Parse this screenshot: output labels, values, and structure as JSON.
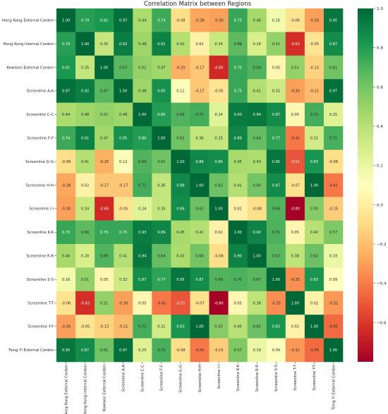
{
  "chart_data": {
    "type": "heatmap",
    "title": "Correlation Matrix between Regions",
    "labels": [
      "Hong Kong External Cordon",
      "Hong Kong Internal Cordon",
      "Kowloon External Cordon",
      "Screenline A-A",
      "Screenline C-C",
      "Screenline F-F",
      "Screenline G-G",
      "Screenline H-H",
      "Screenline I-I",
      "Screenline K-K",
      "Screenline R-R",
      "Screenline S-S",
      "Screenline T-T",
      "Screenline Y-Y",
      "Tsing Yi External Cordon"
    ],
    "values": [
      [
        1.0,
        0.79,
        0.82,
        0.97,
        0.44,
        0.74,
        -0.08,
        -0.28,
        -0.3,
        0.75,
        0.46,
        0.16,
        -0.06,
        -0.3,
        0.95
      ],
      [
        0.79,
        1.0,
        0.35,
        0.92,
        0.48,
        0.91,
        0.41,
        0.02,
        0.34,
        0.66,
        0.28,
        0.51,
        -0.63,
        -0.05,
        0.87
      ],
      [
        0.82,
        0.35,
        1.0,
        0.67,
        0.51,
        0.47,
        -0.25,
        -0.17,
        -0.65,
        0.75,
        0.69,
        0.05,
        0.51,
        -0.13,
        0.61
      ],
      [
        0.97,
        0.92,
        0.67,
        1.0,
        0.48,
        0.85,
        0.12,
        -0.17,
        -0.05,
        0.75,
        0.41,
        0.32,
        -0.3,
        -0.21,
        0.97
      ],
      [
        0.44,
        0.48,
        0.51,
        0.48,
        1.0,
        0.8,
        0.69,
        0.72,
        0.24,
        0.93,
        0.94,
        0.87,
        0.05,
        0.72,
        0.25
      ],
      [
        0.74,
        0.91,
        0.47,
        0.85,
        0.8,
        1.0,
        0.61,
        0.36,
        0.35,
        0.89,
        0.64,
        0.77,
        -0.41,
        0.31,
        0.71
      ],
      [
        -0.08,
        0.41,
        -0.25,
        0.12,
        0.69,
        0.61,
        1.0,
        0.88,
        0.86,
        0.45,
        0.43,
        0.95,
        -0.51,
        0.83,
        -0.08
      ],
      [
        -0.28,
        0.02,
        -0.17,
        -0.17,
        0.72,
        0.36,
        0.88,
        1.0,
        0.62,
        0.41,
        0.6,
        0.87,
        -0.07,
        1.0,
        -0.41
      ],
      [
        -0.3,
        0.34,
        -0.65,
        -0.05,
        0.24,
        0.35,
        0.86,
        0.62,
        1.0,
        0.02,
        -0.08,
        0.69,
        -0.8,
        0.55,
        -0.15
      ],
      [
        0.75,
        0.66,
        0.75,
        0.75,
        0.93,
        0.89,
        0.45,
        0.41,
        0.02,
        1.0,
        0.9,
        0.7,
        0.05,
        0.4,
        0.57
      ],
      [
        0.46,
        0.28,
        0.69,
        0.41,
        0.94,
        0.64,
        0.43,
        0.6,
        -0.08,
        0.9,
        1.0,
        0.67,
        0.38,
        0.62,
        0.19
      ],
      [
        0.16,
        0.51,
        0.05,
        0.32,
        0.87,
        0.77,
        0.95,
        0.87,
        0.69,
        0.7,
        0.67,
        1.0,
        -0.35,
        0.83,
        0.09
      ],
      [
        -0.06,
        -0.63,
        0.51,
        -0.3,
        0.05,
        -0.41,
        -0.51,
        -0.07,
        -0.8,
        0.05,
        0.38,
        -0.35,
        1.0,
        0.02,
        -0.32
      ],
      [
        -0.3,
        -0.05,
        -0.13,
        -0.21,
        0.72,
        0.31,
        0.83,
        1.0,
        0.55,
        0.4,
        0.62,
        0.83,
        0.02,
        1.0,
        -0.45
      ],
      [
        0.95,
        0.87,
        0.61,
        0.97,
        0.25,
        0.71,
        -0.08,
        -0.41,
        -0.15,
        0.57,
        0.19,
        0.09,
        -0.32,
        -0.45,
        1.0
      ]
    ],
    "colormap": "RdYlGn",
    "vmin": -0.8,
    "vmax": 1.0,
    "colorbar_ticks": [
      "1.0",
      "0.8",
      "0.6",
      "0.4",
      "0.2",
      "0.0",
      "−0.2",
      "−0.4",
      "−0.6"
    ],
    "colorbar_tick_values": [
      1.0,
      0.8,
      0.6,
      0.4,
      0.2,
      0.0,
      -0.2,
      -0.4,
      -0.6
    ],
    "colorbar_placement": "right",
    "annotations": "cell values shown with 2 decimals"
  }
}
